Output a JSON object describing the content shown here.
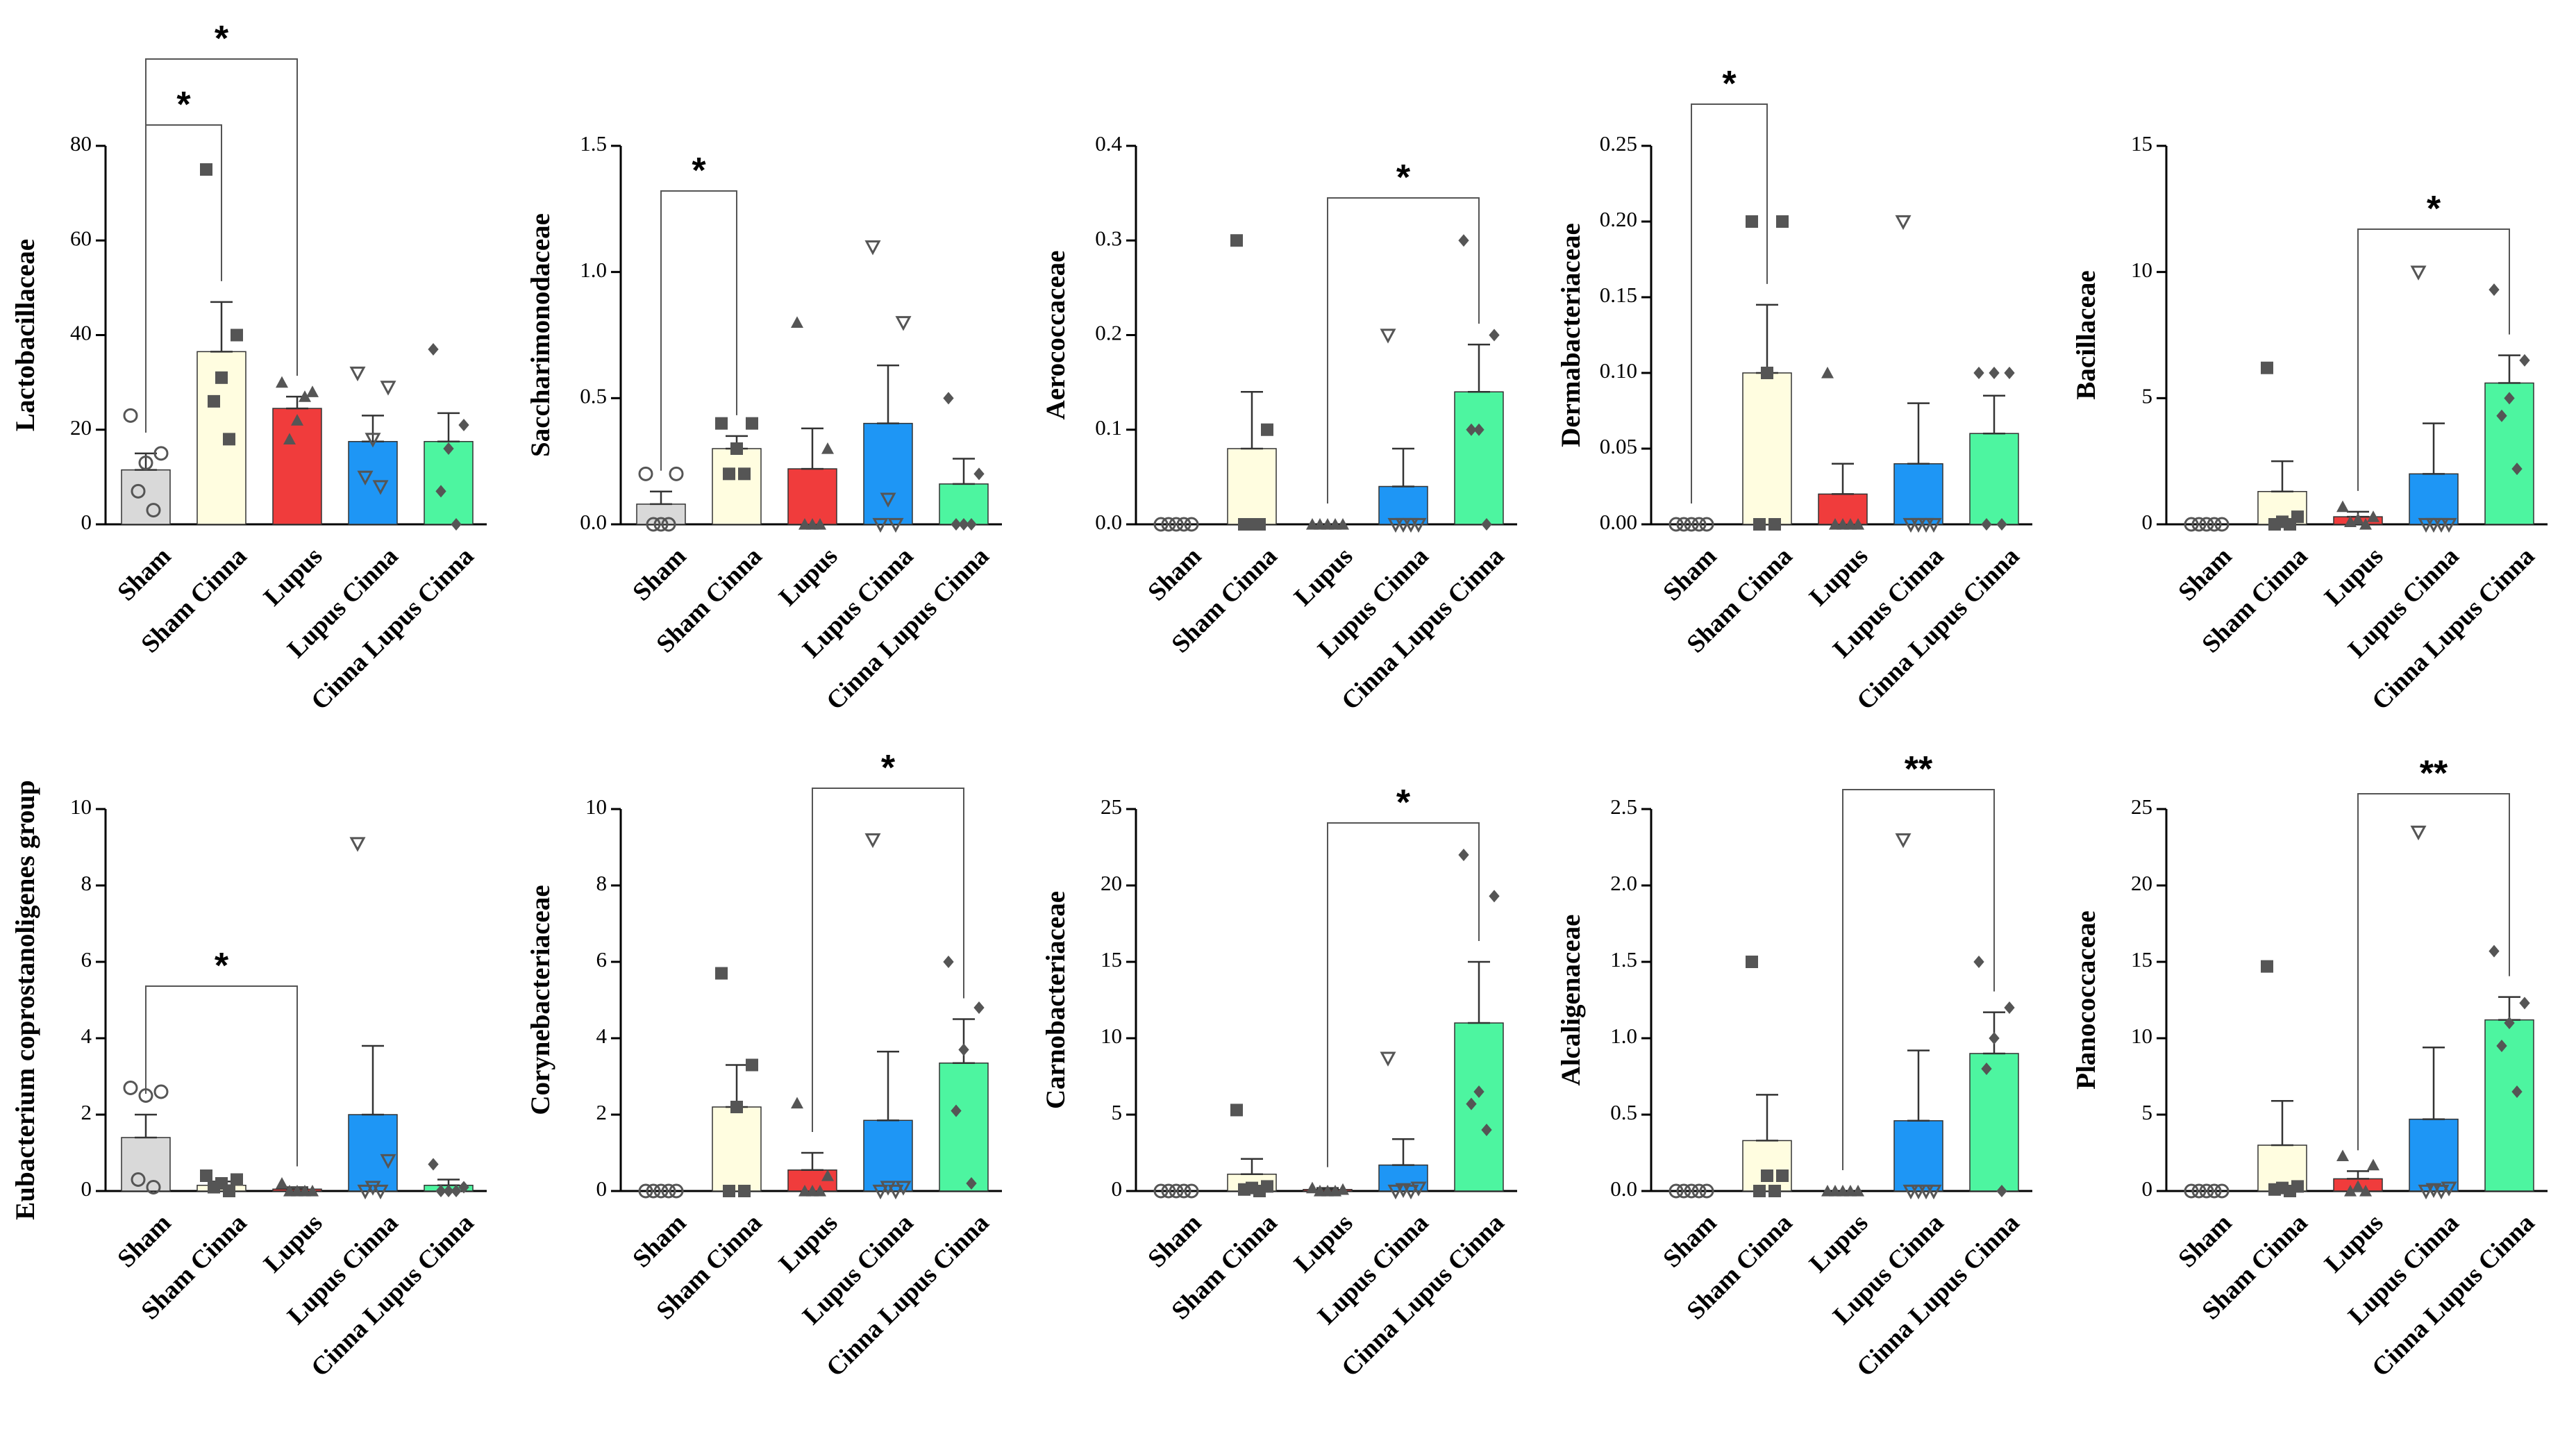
{
  "colors": {
    "Sham": "#d9d9d9",
    "Sham Cinna": "#fffde0",
    "Lupus": "#f03c3c",
    "Lupus Cinna": "#1e96f5",
    "Cinna Lupus Cinna": "#4df5a0",
    "points": "#555555",
    "axis": "#000000"
  },
  "chart_data": [
    {
      "type": "bar",
      "ylabel": "Lactobacillaceae",
      "categories": [
        "Sham",
        "Sham Cinna",
        "Lupus",
        "Lupus Cinna",
        "Cinna Lupus Cinna"
      ],
      "ticks": [
        "0",
        "20",
        "40",
        "60",
        "80"
      ],
      "ylim": [
        0,
        80
      ],
      "values": [
        11.5,
        36.5,
        24.5,
        17.5,
        17.5
      ],
      "errors": [
        3.5,
        10.5,
        2.5,
        5.5,
        6.0
      ],
      "points": [
        [
          23,
          15,
          13,
          7,
          3
        ],
        [
          75,
          40,
          31,
          26,
          18
        ],
        [
          30,
          28,
          22,
          18,
          27
        ],
        [
          32,
          29,
          18,
          10,
          8
        ],
        [
          37,
          21,
          16,
          7,
          0
        ]
      ],
      "sig": [
        {
          "from": 0,
          "to": 1,
          "label": "*"
        },
        {
          "from": 0,
          "to": 2,
          "label": "*"
        }
      ]
    },
    {
      "type": "bar",
      "ylabel": "Saccharimonodaceae",
      "categories": [
        "Sham",
        "Sham Cinna",
        "Lupus",
        "Lupus Cinna",
        "Cinna Lupus Cinna"
      ],
      "ticks": [
        "0.0",
        "0.5",
        "1.0",
        "1.5"
      ],
      "ylim": [
        0,
        1.5
      ],
      "values": [
        0.08,
        0.3,
        0.22,
        0.4,
        0.16
      ],
      "errors": [
        0.05,
        0.05,
        0.16,
        0.23,
        0.1
      ],
      "points": [
        [
          0.2,
          0.2,
          0.0,
          0.0,
          0.0
        ],
        [
          0.4,
          0.4,
          0.3,
          0.2,
          0.2
        ],
        [
          0.8,
          0.3,
          0.0,
          0.0,
          0.0
        ],
        [
          1.1,
          0.8,
          0.1,
          0.0,
          0.0
        ],
        [
          0.5,
          0.2,
          0.0,
          0.0,
          0.0
        ]
      ],
      "sig": [
        {
          "from": 0,
          "to": 1,
          "label": "*"
        }
      ]
    },
    {
      "type": "bar",
      "ylabel": "Aerococcaceae",
      "categories": [
        "Sham",
        "Sham Cinna",
        "Lupus",
        "Lupus Cinna",
        "Cinna Lupus Cinna"
      ],
      "ticks": [
        "0.0",
        "0.1",
        "0.2",
        "0.3",
        "0.4"
      ],
      "ylim": [
        0,
        0.4
      ],
      "values": [
        0.0,
        0.08,
        0.0,
        0.04,
        0.14
      ],
      "errors": [
        0.0,
        0.06,
        0.0,
        0.04,
        0.05
      ],
      "points": [
        [
          0,
          0,
          0,
          0,
          0
        ],
        [
          0.3,
          0.1,
          0,
          0,
          0
        ],
        [
          0,
          0,
          0,
          0,
          0
        ],
        [
          0.2,
          0,
          0,
          0,
          0
        ],
        [
          0.3,
          0.2,
          0.1,
          0.1,
          0
        ]
      ],
      "sig": [
        {
          "from": 2,
          "to": 4,
          "label": "*"
        }
      ]
    },
    {
      "type": "bar",
      "ylabel": "Dermabacteriaceae",
      "categories": [
        "Sham",
        "Sham Cinna",
        "Lupus",
        "Lupus Cinna",
        "Cinna Lupus Cinna"
      ],
      "ticks": [
        "0.00",
        "0.05",
        "0.10",
        "0.15",
        "0.20",
        "0.25"
      ],
      "ylim": [
        0,
        0.25
      ],
      "values": [
        0.0,
        0.1,
        0.02,
        0.04,
        0.06
      ],
      "errors": [
        0.0,
        0.045,
        0.02,
        0.04,
        0.025
      ],
      "points": [
        [
          0,
          0,
          0,
          0,
          0
        ],
        [
          0.2,
          0.2,
          0.1,
          0,
          0
        ],
        [
          0.1,
          0,
          0,
          0,
          0
        ],
        [
          0.2,
          0,
          0,
          0,
          0
        ],
        [
          0.1,
          0.1,
          0.1,
          0,
          0
        ]
      ],
      "sig": [
        {
          "from": 0,
          "to": 1,
          "label": "*"
        }
      ]
    },
    {
      "type": "bar",
      "ylabel": "Bacillaceae",
      "categories": [
        "Sham",
        "Sham Cinna",
        "Lupus",
        "Lupus Cinna",
        "Cinna Lupus Cinna"
      ],
      "ticks": [
        "0",
        "5",
        "10",
        "15"
      ],
      "ylim": [
        0,
        15
      ],
      "values": [
        0.0,
        1.3,
        0.3,
        2.0,
        5.6
      ],
      "errors": [
        0.0,
        1.2,
        0.2,
        2.0,
        1.1
      ],
      "points": [
        [
          0,
          0,
          0,
          0,
          0
        ],
        [
          6.2,
          0.3,
          0.1,
          0,
          0
        ],
        [
          0.7,
          0.3,
          0.2,
          0.1,
          0
        ],
        [
          10,
          0,
          0,
          0,
          0
        ],
        [
          9.3,
          6.5,
          5,
          4.3,
          2.2
        ]
      ],
      "sig": [
        {
          "from": 2,
          "to": 4,
          "label": "*"
        }
      ]
    },
    {
      "type": "bar",
      "ylabel": "Eubacterium coprostanoligenes group",
      "categories": [
        "Sham",
        "Sham Cinna",
        "Lupus",
        "Lupus Cinna",
        "Cinna Lupus Cinna"
      ],
      "ticks": [
        "0",
        "2",
        "4",
        "6",
        "8",
        "10"
      ],
      "ylim": [
        0,
        10
      ],
      "values": [
        1.4,
        0.15,
        0.05,
        2.0,
        0.15
      ],
      "errors": [
        0.6,
        0.1,
        0.05,
        1.8,
        0.15
      ],
      "points": [
        [
          2.7,
          2.6,
          2.5,
          0.3,
          0.1
        ],
        [
          0.4,
          0.3,
          0.2,
          0.1,
          0
        ],
        [
          0.2,
          0,
          0,
          0,
          0
        ],
        [
          9.1,
          0.8,
          0.1,
          0,
          0
        ],
        [
          0.7,
          0.1,
          0,
          0,
          0
        ]
      ],
      "sig": [
        {
          "from": 0,
          "to": 2,
          "label": "*"
        }
      ]
    },
    {
      "type": "bar",
      "ylabel": "Corynebacteriaceae",
      "categories": [
        "Sham",
        "Sham Cinna",
        "Lupus",
        "Lupus Cinna",
        "Cinna Lupus Cinna"
      ],
      "ticks": [
        "0",
        "2",
        "4",
        "6",
        "8",
        "10"
      ],
      "ylim": [
        0,
        10
      ],
      "values": [
        0.0,
        2.2,
        0.55,
        1.85,
        3.35
      ],
      "errors": [
        0.0,
        1.1,
        0.45,
        1.8,
        1.15
      ],
      "points": [
        [
          0,
          0,
          0,
          0,
          0
        ],
        [
          5.7,
          3.3,
          2.2,
          0,
          0
        ],
        [
          2.3,
          0.4,
          0,
          0,
          0
        ],
        [
          9.2,
          0.1,
          0.1,
          0,
          0
        ],
        [
          6,
          4.8,
          3.7,
          2.1,
          0.2
        ]
      ],
      "sig": [
        {
          "from": 2,
          "to": 4,
          "label": "*"
        }
      ]
    },
    {
      "type": "bar",
      "ylabel": "Carnobacteriaceae",
      "categories": [
        "Sham",
        "Sham Cinna",
        "Lupus",
        "Lupus Cinna",
        "Cinna Lupus Cinna"
      ],
      "ticks": [
        "0",
        "5",
        "10",
        "15",
        "20",
        "25"
      ],
      "ylim": [
        0,
        25
      ],
      "values": [
        0.0,
        1.1,
        0.1,
        1.7,
        11.0
      ],
      "errors": [
        0.0,
        1.0,
        0.1,
        1.7,
        4.0
      ],
      "points": [
        [
          0,
          0,
          0,
          0,
          0
        ],
        [
          5.3,
          0.3,
          0.2,
          0.1,
          0
        ],
        [
          0.2,
          0.1,
          0,
          0,
          0
        ],
        [
          8.7,
          0.2,
          0.1,
          0,
          0
        ],
        [
          22,
          19.3,
          6.5,
          5.7,
          4
        ]
      ],
      "sig": [
        {
          "from": 2,
          "to": 4,
          "label": "*"
        }
      ]
    },
    {
      "type": "bar",
      "ylabel": "Alcaligenaceae",
      "categories": [
        "Sham",
        "Sham Cinna",
        "Lupus",
        "Lupus Cinna",
        "Cinna Lupus Cinna"
      ],
      "ticks": [
        "0.0",
        "0.5",
        "1.0",
        "1.5",
        "2.0",
        "2.5"
      ],
      "ylim": [
        0,
        2.5
      ],
      "values": [
        0.0,
        0.33,
        0.0,
        0.46,
        0.9
      ],
      "errors": [
        0.0,
        0.3,
        0.0,
        0.46,
        0.27
      ],
      "points": [
        [
          0,
          0,
          0,
          0,
          0
        ],
        [
          1.5,
          0.1,
          0.1,
          0,
          0
        ],
        [
          0,
          0,
          0,
          0,
          0
        ],
        [
          2.3,
          0,
          0,
          0,
          0
        ],
        [
          1.5,
          1.2,
          1.0,
          0.8,
          0
        ]
      ],
      "sig": [
        {
          "from": 2,
          "to": 4,
          "label": "**"
        }
      ]
    },
    {
      "type": "bar",
      "ylabel": "Planococcaceae",
      "categories": [
        "Sham",
        "Sham Cinna",
        "Lupus",
        "Lupus Cinna",
        "Cinna Lupus Cinna"
      ],
      "ticks": [
        "0",
        "5",
        "10",
        "15",
        "20",
        "25"
      ],
      "ylim": [
        0,
        25
      ],
      "values": [
        0.0,
        3.0,
        0.8,
        4.7,
        11.2
      ],
      "errors": [
        0.0,
        2.9,
        0.5,
        4.7,
        1.5
      ],
      "points": [
        [
          0,
          0,
          0,
          0,
          0
        ],
        [
          14.7,
          0.3,
          0.2,
          0.1,
          0
        ],
        [
          2.3,
          1.7,
          0.3,
          0,
          0
        ],
        [
          23.5,
          0.2,
          0.1,
          0,
          0
        ],
        [
          15.7,
          12.3,
          11,
          9.5,
          6.5
        ]
      ],
      "sig": [
        {
          "from": 2,
          "to": 4,
          "label": "**"
        }
      ]
    }
  ]
}
